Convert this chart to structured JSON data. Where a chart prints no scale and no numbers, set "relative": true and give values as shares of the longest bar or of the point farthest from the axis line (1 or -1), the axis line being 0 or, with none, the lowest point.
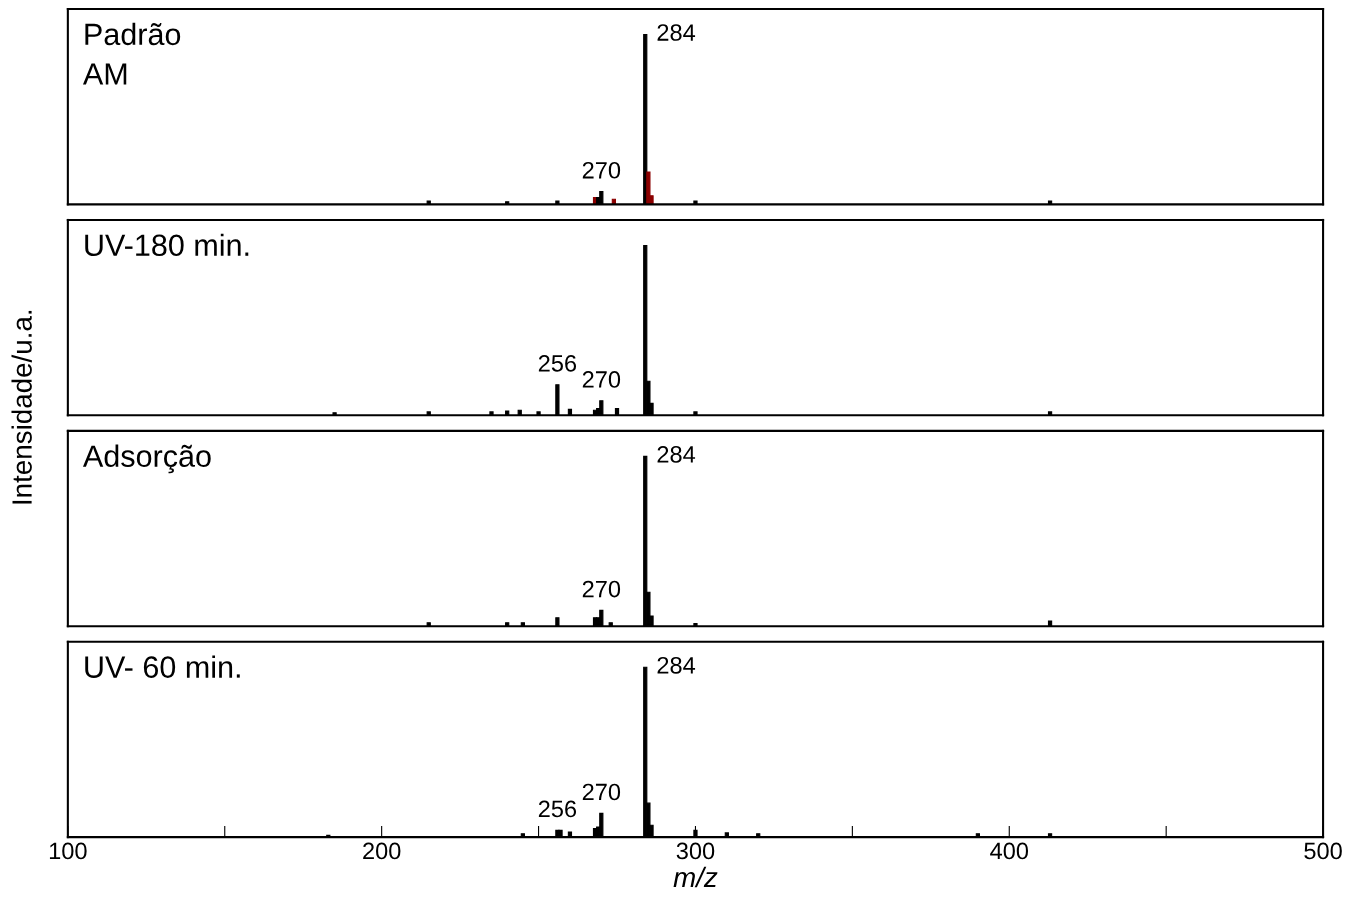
{
  "chart_data": [
    {
      "type": "bar",
      "relative": true,
      "ylabel": "Intensidade/u.a.",
      "xlim": [
        100,
        500
      ],
      "tick_labels": false,
      "grid": false,
      "x": [
        215,
        240,
        256,
        268,
        269,
        270,
        274,
        284,
        285,
        286,
        300,
        413
      ],
      "values": [
        0.02,
        0.015,
        0.02,
        0.04,
        0.04,
        0.075,
        0.03,
        1,
        0.19,
        0.05,
        0.02,
        0.02
      ],
      "colors": [
        "#000000",
        "#000000",
        "#000000",
        "#8b0000",
        "#000000",
        "#000000",
        "#8b0000",
        "#000000",
        "#8b0000",
        "#8b0000",
        "#000000",
        "#000000"
      ],
      "annotations": [
        "Padrão\nAM",
        {
          "text": "284",
          "x": 284,
          "y": 1
        },
        {
          "text": "270",
          "x": 270,
          "y": 0.075
        }
      ]
    },
    {
      "type": "bar",
      "relative": true,
      "xlim": [
        100,
        500
      ],
      "tick_labels": false,
      "grid": false,
      "x": [
        185,
        215,
        235,
        240,
        244,
        250,
        256,
        260,
        268,
        269,
        270,
        275,
        284,
        285,
        286,
        300,
        413
      ],
      "values": [
        0.015,
        0.02,
        0.02,
        0.025,
        0.03,
        0.02,
        0.18,
        0.035,
        0.03,
        0.04,
        0.085,
        0.04,
        1,
        0.2,
        0.07,
        0.02,
        0.02
      ],
      "color": "#000000",
      "annotations": [
        "UV-180 min.",
        {
          "text": "256",
          "x": 256,
          "y": 0.18
        },
        {
          "text": "270",
          "x": 270,
          "y": 0.085
        }
      ]
    },
    {
      "type": "bar",
      "relative": true,
      "xlim": [
        100,
        500
      ],
      "tick_labels": false,
      "grid": false,
      "x": [
        215,
        240,
        245,
        256,
        268,
        269,
        270,
        273,
        284,
        285,
        286,
        300,
        413
      ],
      "values": [
        0.02,
        0.02,
        0.02,
        0.05,
        0.05,
        0.05,
        0.093,
        0.02,
        1,
        0.2,
        0.06,
        0.015,
        0.03
      ],
      "color": "#000000",
      "annotations": [
        "Adsorção",
        {
          "text": "284",
          "x": 284,
          "y": 1
        },
        {
          "text": "270",
          "x": 270,
          "y": 0.093
        }
      ]
    },
    {
      "type": "bar",
      "relative": true,
      "xlim": [
        100,
        500
      ],
      "xlabel": "m/z",
      "tick_labels": "x",
      "grid": false,
      "xticks": [
        100,
        {
          "value": 150,
          "label": null
        },
        200,
        {
          "value": 250,
          "label": null
        },
        300,
        {
          "value": 350,
          "label": null
        },
        400,
        {
          "value": 450,
          "label": null
        },
        500
      ],
      "x": [
        183,
        245,
        256,
        257,
        260,
        268,
        269,
        270,
        284,
        285,
        286,
        300,
        310,
        320,
        390,
        413
      ],
      "values": [
        0.01,
        0.02,
        0.04,
        0.04,
        0.03,
        0.05,
        0.06,
        0.14,
        1,
        0.2,
        0.07,
        0.04,
        0.025,
        0.02,
        0.02,
        0.02
      ],
      "color": "#000000",
      "annotations": [
        "UV- 60 min.",
        {
          "text": "256",
          "x": 256,
          "y": 0.04
        },
        {
          "text": "270",
          "x": 270,
          "y": 0.14
        },
        {
          "text": "284",
          "x": 284,
          "y": 1
        }
      ]
    }
  ]
}
